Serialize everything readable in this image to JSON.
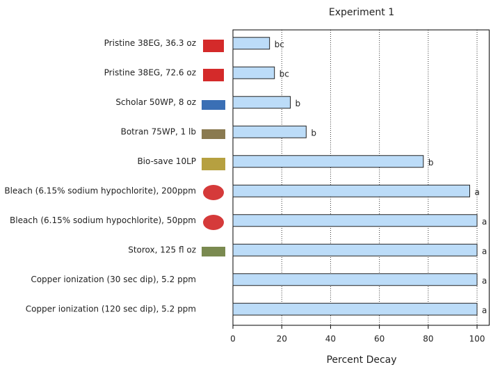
{
  "chart_data": {
    "type": "bar",
    "orientation": "horizontal",
    "title": "Experiment 1",
    "x_label": "Percent Decay",
    "categories": [
      "Pristine 38EG, 36.3 oz",
      "Pristine 38EG, 72.6 oz",
      "Scholar 50WP, 8 oz",
      "Botran 75WP, 1 lb",
      "Bio-save 10LP",
      "Bleach (6.15% sodium hypochlorite), 200ppm",
      "Bleach (6.15% sodium hypochlorite), 50ppm",
      "Storox, 125 fl oz",
      "Copper ionization (30 sec dip), 5.2 ppm",
      "Copper ionization (120 sec dip), 5.2 ppm"
    ],
    "values": [
      15,
      17,
      23.5,
      30,
      78,
      97,
      100,
      100,
      100,
      100
    ],
    "letters": [
      "bc",
      "bc",
      "b",
      "b",
      "b",
      "a",
      "a",
      "a",
      "a",
      "a"
    ],
    "color": "#bcdcf8",
    "xlim": [
      0,
      105
    ],
    "xticks": [
      0,
      20,
      40,
      60,
      80,
      100
    ],
    "grid": true
  }
}
